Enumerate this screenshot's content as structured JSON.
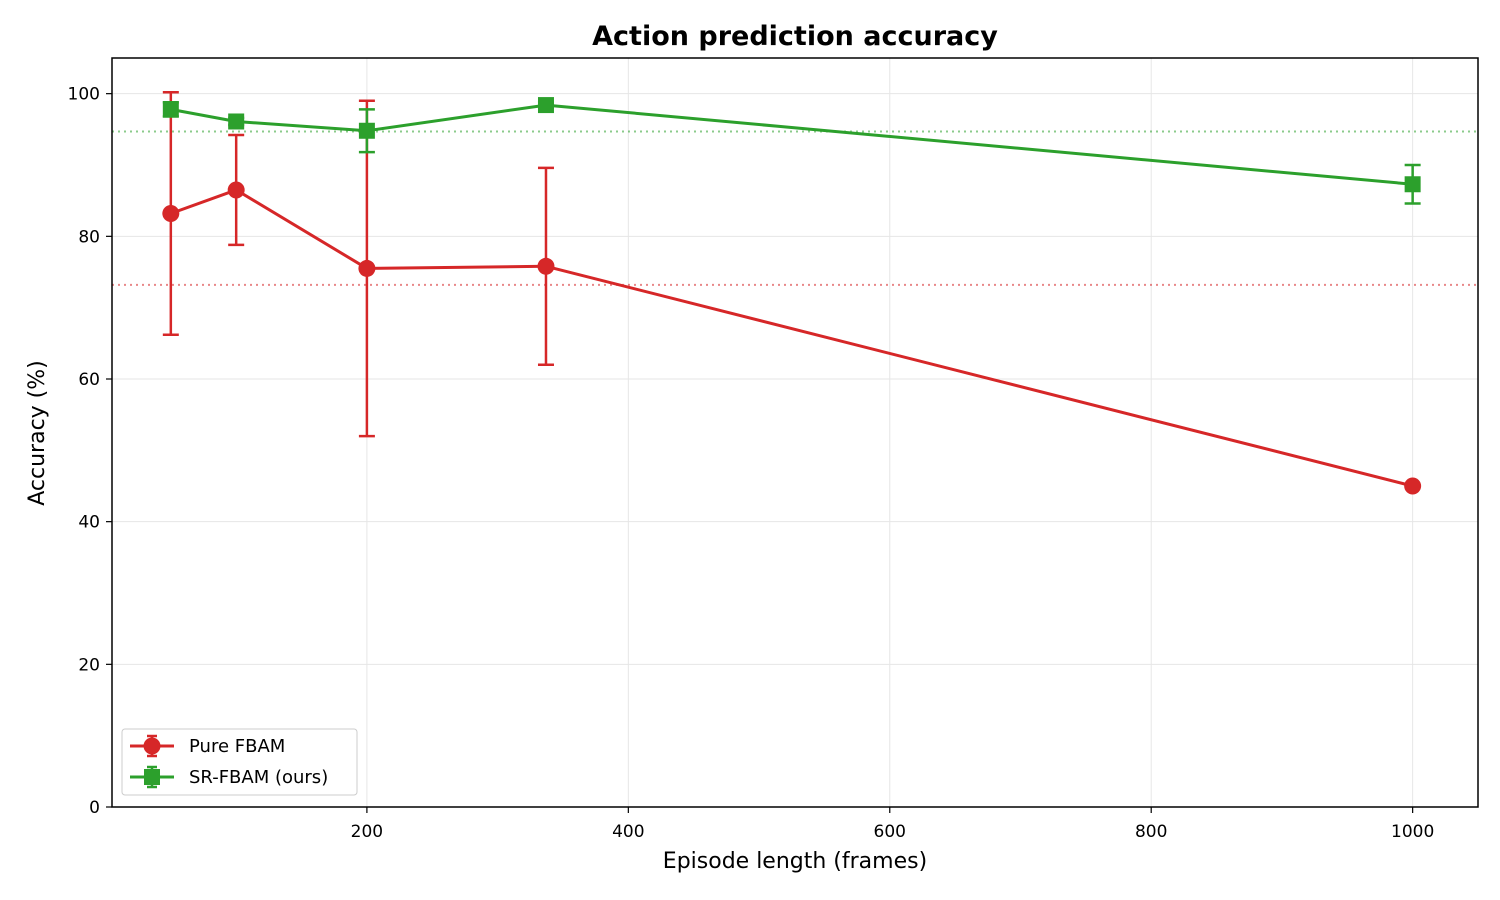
{
  "chart_data": {
    "type": "line",
    "title": "Action prediction accuracy",
    "xlabel": "Episode length (frames)",
    "ylabel": "Accuracy (%)",
    "xlim": [
      5,
      1050
    ],
    "ylim": [
      0,
      105
    ],
    "xticks": [
      200,
      400,
      600,
      800,
      1000
    ],
    "yticks": [
      0,
      20,
      40,
      60,
      80,
      100
    ],
    "grid": true,
    "legend_position": "lower-left",
    "series": [
      {
        "name": "Pure FBAM",
        "color": "#d62728",
        "marker": "circle",
        "x": [
          50,
          100,
          200,
          337,
          1000
        ],
        "y": [
          83.2,
          86.5,
          75.5,
          75.8,
          45.0
        ],
        "yerr": [
          17.0,
          7.7,
          23.5,
          13.8,
          0
        ],
        "reference_line": 73.2
      },
      {
        "name": "SR-FBAM (ours)",
        "color": "#2ca02c",
        "marker": "square",
        "x": [
          50,
          100,
          200,
          337,
          1000
        ],
        "y": [
          97.8,
          96.1,
          94.8,
          98.4,
          87.3
        ],
        "yerr": [
          1.0,
          0.5,
          3.0,
          0.4,
          2.7
        ],
        "reference_line": 94.7
      }
    ]
  }
}
